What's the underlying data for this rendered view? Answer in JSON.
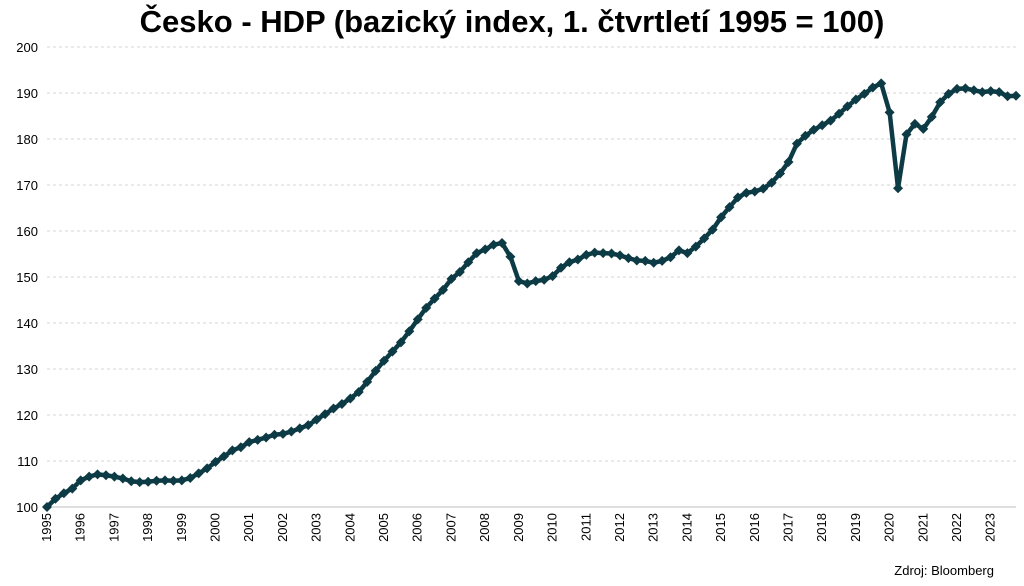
{
  "chart_data": {
    "type": "line",
    "title": "Česko - HDP (bazický index, 1. čtvrtletí 1995 = 100)",
    "xlabel": "",
    "ylabel": "",
    "ylim": [
      100,
      200
    ],
    "yticks": [
      100,
      110,
      120,
      130,
      140,
      150,
      160,
      170,
      180,
      190,
      200
    ],
    "x_tick_labels": [
      "1995",
      "1996",
      "1997",
      "1998",
      "1999",
      "2000",
      "2001",
      "2002",
      "2003",
      "2004",
      "2005",
      "2006",
      "2007",
      "2008",
      "2009",
      "2010",
      "2011",
      "2012",
      "2013",
      "2014",
      "2015",
      "2016",
      "2017",
      "2018",
      "2019",
      "2020",
      "2021",
      "2022",
      "2023"
    ],
    "grid": true,
    "legend": false,
    "line_color": "#0d3b45",
    "x": [
      "1995Q1",
      "1995Q2",
      "1995Q3",
      "1995Q4",
      "1996Q1",
      "1996Q2",
      "1996Q3",
      "1996Q4",
      "1997Q1",
      "1997Q2",
      "1997Q3",
      "1997Q4",
      "1998Q1",
      "1998Q2",
      "1998Q3",
      "1998Q4",
      "1999Q1",
      "1999Q2",
      "1999Q3",
      "1999Q4",
      "2000Q1",
      "2000Q2",
      "2000Q3",
      "2000Q4",
      "2001Q1",
      "2001Q2",
      "2001Q3",
      "2001Q4",
      "2002Q1",
      "2002Q2",
      "2002Q3",
      "2002Q4",
      "2003Q1",
      "2003Q2",
      "2003Q3",
      "2003Q4",
      "2004Q1",
      "2004Q2",
      "2004Q3",
      "2004Q4",
      "2005Q1",
      "2005Q2",
      "2005Q3",
      "2005Q4",
      "2006Q1",
      "2006Q2",
      "2006Q3",
      "2006Q4",
      "2007Q1",
      "2007Q2",
      "2007Q3",
      "2007Q4",
      "2008Q1",
      "2008Q2",
      "2008Q3",
      "2008Q4",
      "2009Q1",
      "2009Q2",
      "2009Q3",
      "2009Q4",
      "2010Q1",
      "2010Q2",
      "2010Q3",
      "2010Q4",
      "2011Q1",
      "2011Q2",
      "2011Q3",
      "2011Q4",
      "2012Q1",
      "2012Q2",
      "2012Q3",
      "2012Q4",
      "2013Q1",
      "2013Q2",
      "2013Q3",
      "2013Q4",
      "2014Q1",
      "2014Q2",
      "2014Q3",
      "2014Q4",
      "2015Q1",
      "2015Q2",
      "2015Q3",
      "2015Q4",
      "2016Q1",
      "2016Q2",
      "2016Q3",
      "2016Q4",
      "2017Q1",
      "2017Q2",
      "2017Q3",
      "2017Q4",
      "2018Q1",
      "2018Q2",
      "2018Q3",
      "2018Q4",
      "2019Q1",
      "2019Q2",
      "2019Q3",
      "2019Q4",
      "2020Q1",
      "2020Q2",
      "2020Q3",
      "2020Q4",
      "2021Q1",
      "2021Q2",
      "2021Q3",
      "2021Q4",
      "2022Q1",
      "2022Q2",
      "2022Q3",
      "2022Q4",
      "2023Q1",
      "2023Q2",
      "2023Q3",
      "2023Q4"
    ],
    "values": [
      100,
      101.8,
      103,
      104,
      105.8,
      106.6,
      107.1,
      106.9,
      106.6,
      106.2,
      105.6,
      105.4,
      105.5,
      105.7,
      105.8,
      105.7,
      105.8,
      106.3,
      107.3,
      108.4,
      109.8,
      111,
      112.3,
      113,
      114.1,
      114.6,
      115.1,
      115.7,
      115.9,
      116.4,
      117.1,
      117.8,
      119,
      120.2,
      121.4,
      122.4,
      123.6,
      125,
      127.2,
      129.6,
      131.8,
      133.8,
      135.8,
      138.2,
      140.8,
      143.3,
      145.3,
      147.2,
      149.6,
      151.1,
      153.2,
      155.2,
      156,
      157,
      157.4,
      154.4,
      149.1,
      148.6,
      149.1,
      149.4,
      150.2,
      152,
      153.2,
      153.8,
      154.8,
      155.3,
      155.2,
      155.1,
      154.7,
      154.1,
      153.6,
      153.5,
      153.1,
      153.5,
      154.3,
      155.8,
      155.2,
      156.6,
      158.4,
      160.3,
      163,
      165.2,
      167.3,
      168.3,
      168.6,
      169.2,
      170.5,
      172.5,
      175,
      179,
      180.7,
      182,
      183,
      184,
      185.5,
      187.1,
      188.6,
      189.8,
      191.2,
      192.1,
      185.8,
      169.3,
      181,
      183.3,
      182.2,
      184.8,
      188,
      189.8,
      190.9,
      191,
      190.6,
      190.2,
      190.4,
      190.2,
      189.3,
      189.4
    ]
  },
  "source_note": "Zdroj: Bloomberg"
}
